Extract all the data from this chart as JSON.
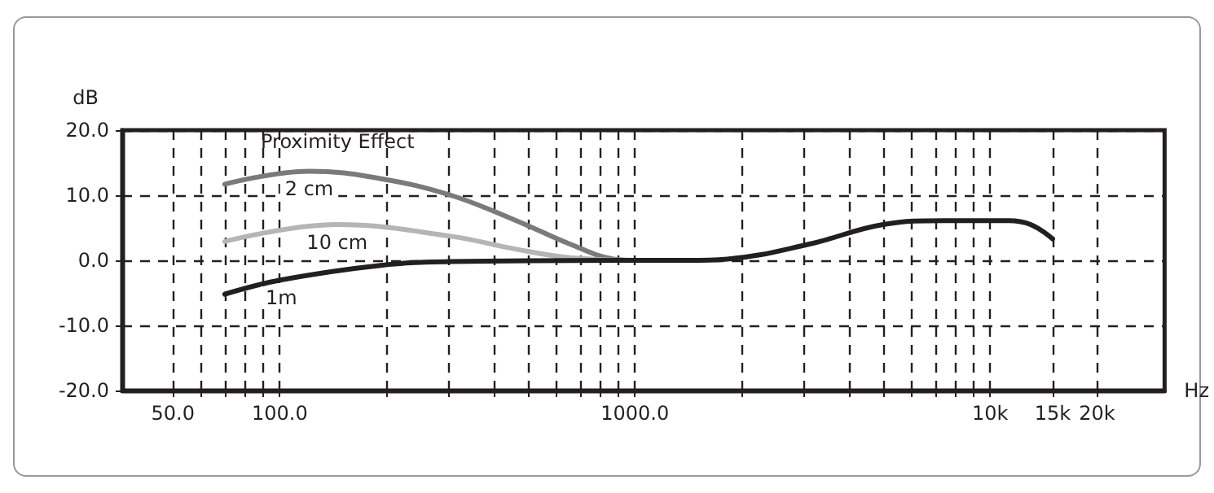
{
  "chart_data": {
    "type": "line",
    "ylabel": "dB",
    "xlabel": "Hz",
    "log": "x",
    "grid": true,
    "legend": false,
    "marker": "none",
    "line_style": "solid",
    "annotations": [
      "Proximity Effect"
    ],
    "xlim": [
      36,
      31000
    ],
    "xticks": [
      {
        "value": 50,
        "label": "50.0"
      },
      {
        "value": 60,
        "label": null
      },
      {
        "value": 70,
        "label": null
      },
      {
        "value": 80,
        "label": null
      },
      {
        "value": 90,
        "label": null
      },
      {
        "value": 100,
        "label": "100.0"
      },
      {
        "value": 200,
        "label": null
      },
      {
        "value": 300,
        "label": null
      },
      {
        "value": 400,
        "label": null
      },
      {
        "value": 500,
        "label": null
      },
      {
        "value": 600,
        "label": null
      },
      {
        "value": 700,
        "label": null
      },
      {
        "value": 800,
        "label": null
      },
      {
        "value": 900,
        "label": null
      },
      {
        "value": 1000,
        "label": "1000.0"
      },
      {
        "value": 2000,
        "label": null
      },
      {
        "value": 3000,
        "label": null
      },
      {
        "value": 4000,
        "label": null
      },
      {
        "value": 5000,
        "label": null
      },
      {
        "value": 6000,
        "label": null
      },
      {
        "value": 7000,
        "label": null
      },
      {
        "value": 8000,
        "label": null
      },
      {
        "value": 9000,
        "label": null
      },
      {
        "value": 10000,
        "label": "10k"
      },
      {
        "value": 15000,
        "label": "15k"
      },
      {
        "value": 20000,
        "label": "20k"
      }
    ],
    "ylim": [
      -20,
      20
    ],
    "yticks": [
      {
        "value": -20,
        "label": "-20.0"
      },
      {
        "value": -10,
        "label": "-10.0"
      },
      {
        "value": 0,
        "label": "0.0"
      },
      {
        "value": 10,
        "label": "10.0"
      },
      {
        "value": 20,
        "label": "20.0"
      }
    ],
    "series": [
      {
        "name": "2 cm",
        "color": "#7a7a7a",
        "x": [
          70,
          121,
          190,
          303,
          463,
          656,
          870,
          1000
        ],
        "values": [
          11.7,
          13.7,
          12.6,
          10,
          6.1,
          2.5,
          0.2,
          0
        ]
      },
      {
        "name": "10 cm",
        "color": "#b5b5b5",
        "x": [
          70,
          145,
          303,
          463,
          656,
          1000
        ],
        "values": [
          2.9,
          5.5,
          3.7,
          1.7,
          0.4,
          0
        ]
      },
      {
        "name": "1m",
        "color": "#231f20",
        "x": [
          70,
          101,
          190,
          303,
          1000,
          1400,
          1820,
          3100,
          5000,
          7400,
          11300,
          13000,
          15000
        ],
        "values": [
          -5.2,
          -3.0,
          -0.8,
          -0.2,
          0,
          0,
          0.2,
          2.5,
          5.5,
          6.1,
          6.1,
          5.5,
          3.3
        ]
      }
    ]
  }
}
